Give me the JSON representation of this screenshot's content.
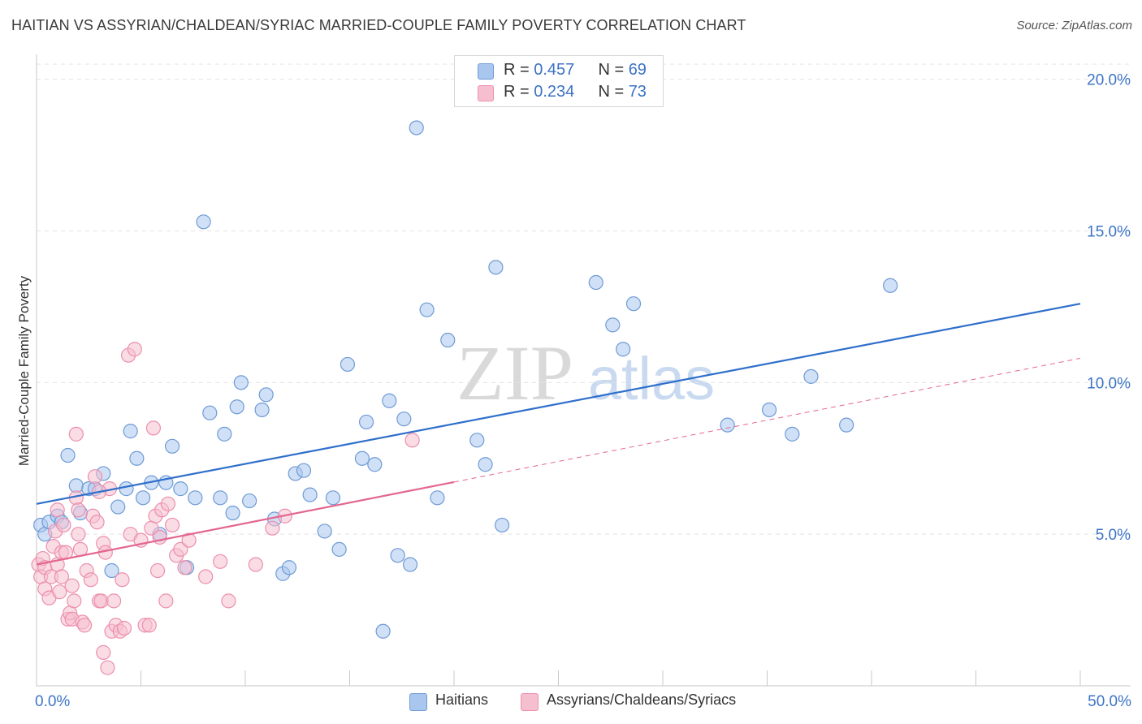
{
  "title": "HAITIAN VS ASSYRIAN/CHALDEAN/SYRIAC MARRIED-COUPLE FAMILY POVERTY CORRELATION CHART",
  "source": "Source: ZipAtlas.com",
  "watermark": {
    "zip": "ZIP",
    "atlas": "atlas"
  },
  "legend": {
    "rows": [
      {
        "r_label": "R = ",
        "r_value": "0.457",
        "n_label": "N = ",
        "n_value": "69"
      },
      {
        "r_label": "R = ",
        "r_value": "0.234",
        "n_label": "N = ",
        "n_value": "73"
      }
    ],
    "bottom": [
      "Haitians",
      "Assyrians/Chaldeans/Syriacs"
    ]
  },
  "colors": {
    "blue_fill": "#a9c6ee",
    "blue_stroke": "#6f9bd6",
    "blue_line": "#2f6fcb",
    "pink_fill": "#f6bfd0",
    "pink_stroke": "#ec8fad",
    "pink_line": "#e3668f",
    "axis_text": "#3d74c6",
    "grid": "#e3e3e3"
  },
  "chart_data": {
    "type": "scatter",
    "title": "HAITIAN VS ASSYRIAN/CHALDEAN/SYRIAC MARRIED-COUPLE FAMILY POVERTY CORRELATION CHART",
    "xlabel": "",
    "ylabel": "Married-Couple Family Poverty",
    "xlim": [
      0,
      50
    ],
    "ylim": [
      0,
      20.5
    ],
    "x_tick_labels": [
      "0.0%",
      "50.0%"
    ],
    "y_ticks": [
      5,
      10,
      15,
      20
    ],
    "y_tick_labels": [
      "5.0%",
      "10.0%",
      "15.0%",
      "20.0%"
    ],
    "series": [
      {
        "name": "Haitians",
        "color": "blue",
        "trend": {
          "x": [
            0,
            50
          ],
          "y": [
            6.0,
            12.6
          ],
          "dashed_from": null
        },
        "points": [
          [
            0.2,
            5.3
          ],
          [
            0.4,
            5.0
          ],
          [
            0.6,
            5.4
          ],
          [
            1.0,
            5.6
          ],
          [
            1.2,
            5.4
          ],
          [
            1.5,
            7.6
          ],
          [
            1.9,
            6.6
          ],
          [
            2.1,
            5.7
          ],
          [
            2.5,
            6.5
          ],
          [
            2.8,
            6.5
          ],
          [
            3.2,
            7.0
          ],
          [
            3.6,
            3.8
          ],
          [
            3.9,
            5.9
          ],
          [
            4.3,
            6.5
          ],
          [
            4.5,
            8.4
          ],
          [
            4.8,
            7.5
          ],
          [
            5.1,
            6.2
          ],
          [
            5.5,
            6.7
          ],
          [
            5.9,
            5.0
          ],
          [
            6.2,
            6.7
          ],
          [
            6.5,
            7.9
          ],
          [
            6.9,
            6.5
          ],
          [
            7.2,
            3.9
          ],
          [
            7.6,
            6.2
          ],
          [
            8.0,
            15.3
          ],
          [
            8.3,
            9.0
          ],
          [
            8.8,
            6.2
          ],
          [
            9.0,
            8.3
          ],
          [
            9.4,
            5.7
          ],
          [
            9.6,
            9.2
          ],
          [
            9.8,
            10.0
          ],
          [
            10.2,
            6.1
          ],
          [
            10.8,
            9.1
          ],
          [
            11.0,
            9.6
          ],
          [
            11.4,
            5.5
          ],
          [
            11.8,
            3.7
          ],
          [
            12.1,
            3.9
          ],
          [
            12.4,
            7.0
          ],
          [
            12.8,
            7.1
          ],
          [
            13.1,
            6.3
          ],
          [
            13.8,
            5.1
          ],
          [
            14.2,
            6.2
          ],
          [
            14.5,
            4.5
          ],
          [
            14.9,
            10.6
          ],
          [
            15.6,
            7.5
          ],
          [
            15.8,
            8.7
          ],
          [
            16.2,
            7.3
          ],
          [
            16.6,
            1.8
          ],
          [
            16.9,
            9.4
          ],
          [
            17.3,
            4.3
          ],
          [
            17.6,
            8.8
          ],
          [
            17.9,
            4.0
          ],
          [
            18.2,
            18.4
          ],
          [
            18.7,
            12.4
          ],
          [
            19.2,
            6.2
          ],
          [
            19.7,
            11.4
          ],
          [
            21.1,
            8.1
          ],
          [
            21.5,
            7.3
          ],
          [
            22.0,
            13.8
          ],
          [
            22.3,
            5.3
          ],
          [
            26.8,
            13.3
          ],
          [
            27.6,
            11.9
          ],
          [
            28.1,
            11.1
          ],
          [
            28.6,
            12.6
          ],
          [
            33.1,
            8.6
          ],
          [
            35.1,
            9.1
          ],
          [
            36.2,
            8.3
          ],
          [
            37.1,
            10.2
          ],
          [
            38.8,
            8.6
          ],
          [
            40.9,
            13.2
          ]
        ]
      },
      {
        "name": "Assyrians/Chaldeans/Syriacs",
        "color": "pink",
        "trend": {
          "x": [
            0,
            50
          ],
          "y": [
            4.0,
            10.8
          ],
          "dashed_from": 20.0
        },
        "points": [
          [
            0.1,
            4.0
          ],
          [
            0.2,
            3.6
          ],
          [
            0.3,
            4.2
          ],
          [
            0.4,
            3.2
          ],
          [
            0.4,
            3.9
          ],
          [
            0.6,
            2.9
          ],
          [
            0.7,
            3.6
          ],
          [
            0.8,
            4.6
          ],
          [
            0.9,
            5.1
          ],
          [
            1.0,
            5.8
          ],
          [
            1.0,
            4.0
          ],
          [
            1.1,
            3.1
          ],
          [
            1.2,
            3.6
          ],
          [
            1.2,
            4.4
          ],
          [
            1.3,
            5.3
          ],
          [
            1.4,
            4.4
          ],
          [
            1.5,
            2.2
          ],
          [
            1.6,
            2.4
          ],
          [
            1.7,
            3.3
          ],
          [
            1.7,
            2.2
          ],
          [
            1.8,
            2.8
          ],
          [
            1.9,
            6.2
          ],
          [
            1.9,
            8.3
          ],
          [
            2.0,
            5.8
          ],
          [
            2.0,
            5.0
          ],
          [
            2.1,
            4.5
          ],
          [
            2.2,
            2.1
          ],
          [
            2.3,
            2.0
          ],
          [
            2.4,
            3.8
          ],
          [
            2.6,
            3.5
          ],
          [
            2.7,
            5.6
          ],
          [
            2.8,
            6.9
          ],
          [
            2.9,
            5.4
          ],
          [
            3.0,
            2.8
          ],
          [
            3.1,
            2.8
          ],
          [
            3.2,
            1.1
          ],
          [
            3.2,
            4.7
          ],
          [
            3.3,
            4.4
          ],
          [
            3.4,
            0.6
          ],
          [
            3.5,
            6.5
          ],
          [
            3.6,
            1.8
          ],
          [
            3.7,
            2.8
          ],
          [
            3.8,
            2.0
          ],
          [
            4.0,
            1.8
          ],
          [
            4.1,
            3.5
          ],
          [
            4.2,
            1.9
          ],
          [
            4.4,
            10.9
          ],
          [
            4.5,
            5.0
          ],
          [
            4.7,
            11.1
          ],
          [
            5.0,
            4.8
          ],
          [
            5.2,
            2.0
          ],
          [
            5.4,
            2.0
          ],
          [
            5.5,
            5.2
          ],
          [
            5.6,
            8.5
          ],
          [
            5.7,
            5.6
          ],
          [
            5.8,
            3.8
          ],
          [
            5.9,
            4.9
          ],
          [
            6.0,
            5.8
          ],
          [
            6.2,
            2.8
          ],
          [
            6.3,
            6.0
          ],
          [
            6.5,
            5.3
          ],
          [
            6.7,
            4.3
          ],
          [
            6.9,
            4.5
          ],
          [
            7.1,
            3.9
          ],
          [
            7.3,
            4.8
          ],
          [
            8.1,
            3.6
          ],
          [
            8.8,
            4.1
          ],
          [
            9.2,
            2.8
          ],
          [
            10.5,
            4.0
          ],
          [
            11.3,
            5.2
          ],
          [
            11.9,
            5.6
          ],
          [
            18.0,
            8.1
          ],
          [
            3.0,
            6.4
          ]
        ]
      }
    ]
  }
}
